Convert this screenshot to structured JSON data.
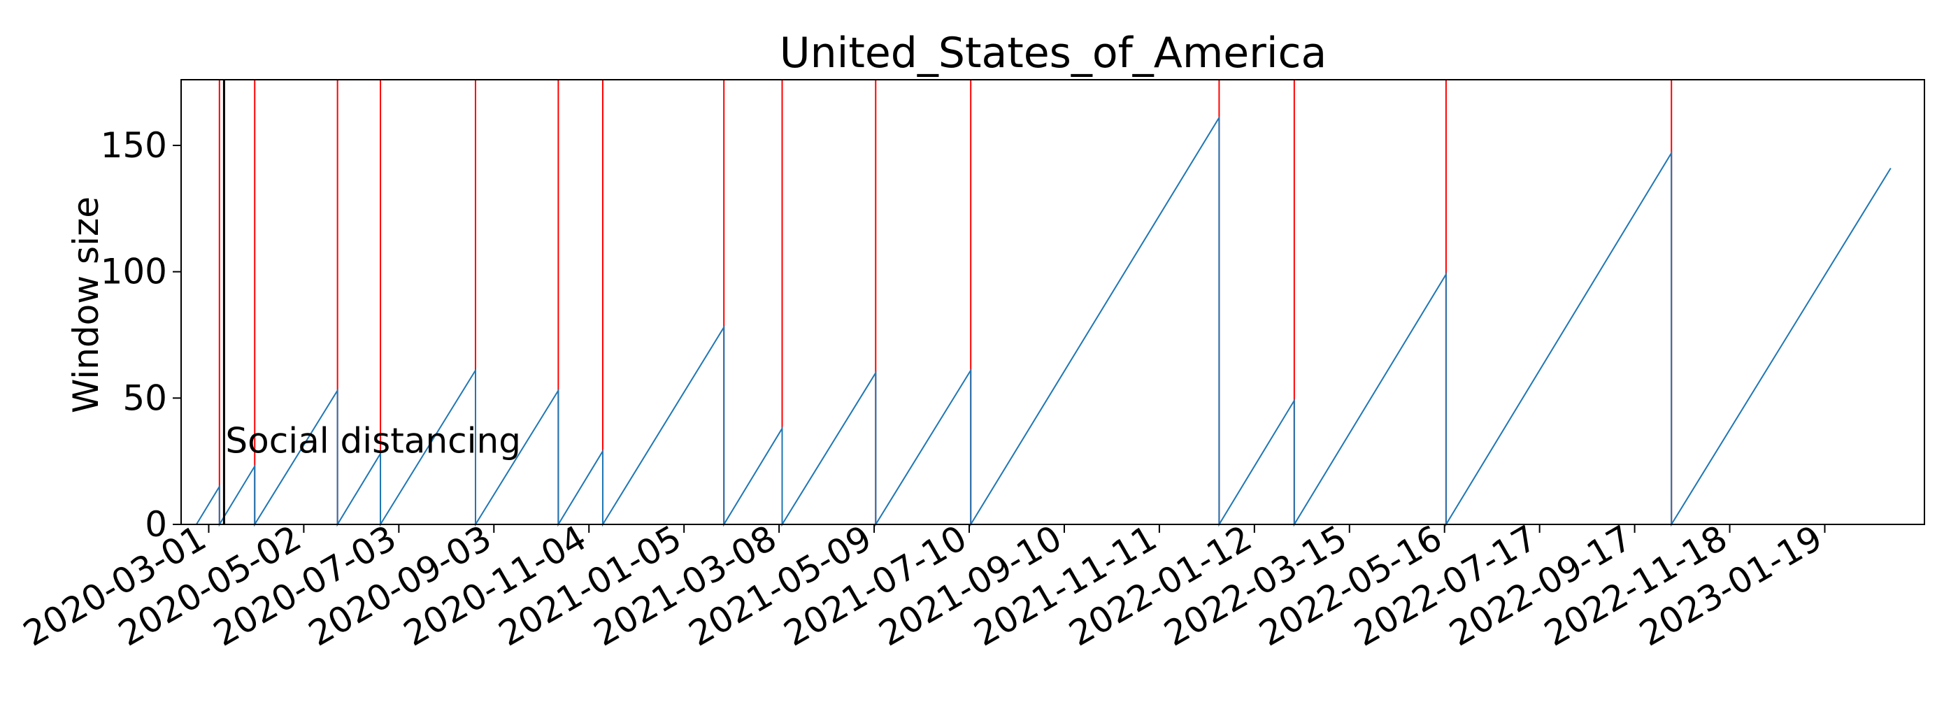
{
  "chart_data": {
    "type": "line",
    "title": "United_States_of_America",
    "xlabel": "",
    "ylabel": "Window size",
    "x_axis_type": "date",
    "xlim": [
      "2020-02-12",
      "2023-03-25"
    ],
    "ylim": [
      0,
      176
    ],
    "x_ticks": [
      "2020-03-01",
      "2020-05-02",
      "2020-07-03",
      "2020-09-03",
      "2020-11-04",
      "2021-01-05",
      "2021-03-08",
      "2021-05-09",
      "2021-07-10",
      "2021-09-10",
      "2021-11-11",
      "2022-01-12",
      "2022-03-15",
      "2022-05-16",
      "2022-07-17",
      "2022-09-17",
      "2022-11-18",
      "2023-01-19"
    ],
    "y_ticks": [
      0,
      50,
      100,
      150
    ],
    "grid": false,
    "series": [
      {
        "color": "#1f77b4",
        "points": [
          [
            "2020-02-22",
            0
          ],
          [
            "2020-03-08",
            15
          ],
          [
            "2020-03-08",
            0
          ],
          [
            "2020-03-31",
            23
          ],
          [
            "2020-03-31",
            0
          ],
          [
            "2020-05-24",
            53
          ],
          [
            "2020-05-24",
            0
          ],
          [
            "2020-06-21",
            28
          ],
          [
            "2020-06-21",
            0
          ],
          [
            "2020-08-22",
            61
          ],
          [
            "2020-08-22",
            0
          ],
          [
            "2020-10-15",
            53
          ],
          [
            "2020-10-15",
            0
          ],
          [
            "2020-11-13",
            29
          ],
          [
            "2020-11-13",
            0
          ],
          [
            "2021-01-31",
            78
          ],
          [
            "2021-01-31",
            0
          ],
          [
            "2021-03-10",
            38
          ],
          [
            "2021-03-10",
            0
          ],
          [
            "2021-05-10",
            60
          ],
          [
            "2021-05-10",
            0
          ],
          [
            "2021-07-11",
            61
          ],
          [
            "2021-07-11",
            0
          ],
          [
            "2021-12-20",
            161
          ],
          [
            "2021-12-20",
            0
          ],
          [
            "2022-02-07",
            49
          ],
          [
            "2022-02-07",
            0
          ],
          [
            "2022-05-17",
            99
          ],
          [
            "2022-05-17",
            0
          ],
          [
            "2022-10-11",
            147
          ],
          [
            "2022-10-11",
            0
          ],
          [
            "2023-03-03",
            141
          ]
        ]
      }
    ],
    "change_points": {
      "color": "#ff0000",
      "dates": [
        "2020-03-08",
        "2020-03-31",
        "2020-05-24",
        "2020-06-21",
        "2020-08-22",
        "2020-10-15",
        "2020-11-13",
        "2021-01-31",
        "2021-03-10",
        "2021-05-10",
        "2021-07-11",
        "2021-12-20",
        "2022-02-07",
        "2022-05-17",
        "2022-10-11"
      ]
    },
    "annotations": [
      {
        "date": "2020-03-11",
        "label": "Social distancing",
        "y": 25,
        "color": "#000000"
      }
    ]
  }
}
